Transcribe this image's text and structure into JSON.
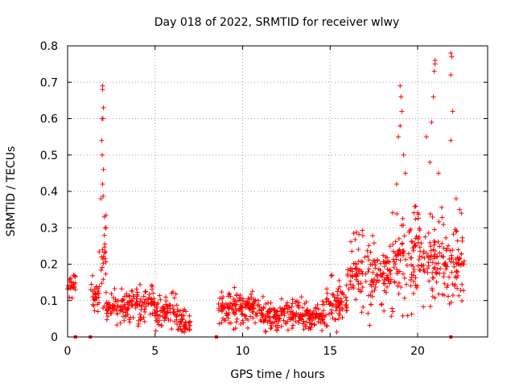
{
  "chart_data": {
    "type": "scatter",
    "title": "Day 018 of 2022, SRMTID for receiver wlwy",
    "xlabel": "GPS time / hours",
    "ylabel": "SRMTID / TECUs",
    "xlim": [
      0,
      24
    ],
    "ylim": [
      0,
      0.8
    ],
    "xticks": [
      0,
      5,
      10,
      15,
      20
    ],
    "xtick_labels": [
      "0",
      "5",
      "10",
      "15",
      "20"
    ],
    "yticks": [
      0,
      0.1,
      0.2,
      0.3,
      0.4,
      0.5,
      0.6,
      0.7,
      0.8
    ],
    "ytick_labels": [
      "0",
      "0.1",
      "0.2",
      "0.3",
      "0.4",
      "0.5",
      "0.6",
      "0.7",
      "0.8"
    ],
    "grid": true,
    "marker": "+",
    "color": "#ff0000",
    "zero_markers_x": [
      0.45,
      1.3,
      8.5,
      21.9
    ],
    "segments": [
      {
        "t0": 0.0,
        "t1": 0.45,
        "base": 0.14,
        "amp": 0.03
      },
      {
        "t0": 1.3,
        "t1": 1.8,
        "base": 0.12,
        "amp": 0.05
      },
      {
        "t0": 1.8,
        "t1": 2.2,
        "base": 0.22,
        "amp": 0.15
      },
      {
        "t0": 2.2,
        "t1": 3.5,
        "base": 0.08,
        "amp": 0.04
      },
      {
        "t0": 3.5,
        "t1": 5.0,
        "base": 0.09,
        "amp": 0.05
      },
      {
        "t0": 5.0,
        "t1": 6.3,
        "base": 0.07,
        "amp": 0.05
      },
      {
        "t0": 6.3,
        "t1": 7.0,
        "base": 0.04,
        "amp": 0.03
      },
      {
        "t0": 8.6,
        "t1": 9.3,
        "base": 0.08,
        "amp": 0.04
      },
      {
        "t0": 9.3,
        "t1": 11.0,
        "base": 0.08,
        "amp": 0.05
      },
      {
        "t0": 11.0,
        "t1": 12.5,
        "base": 0.06,
        "amp": 0.04
      },
      {
        "t0": 12.5,
        "t1": 14.8,
        "base": 0.06,
        "amp": 0.04
      },
      {
        "t0": 14.8,
        "t1": 16.0,
        "base": 0.09,
        "amp": 0.06
      },
      {
        "t0": 16.0,
        "t1": 18.5,
        "base": 0.17,
        "amp": 0.1
      },
      {
        "t0": 18.5,
        "t1": 20.0,
        "base": 0.22,
        "amp": 0.14
      },
      {
        "t0": 20.0,
        "t1": 21.5,
        "base": 0.22,
        "amp": 0.12
      },
      {
        "t0": 21.5,
        "t1": 22.7,
        "base": 0.2,
        "amp": 0.1
      }
    ],
    "spikes": [
      {
        "t": 2.0,
        "v": 0.69
      },
      {
        "t": 2.0,
        "v": 0.68
      },
      {
        "t": 2.05,
        "v": 0.63
      },
      {
        "t": 1.97,
        "v": 0.6
      },
      {
        "t": 2.02,
        "v": 0.6
      },
      {
        "t": 1.95,
        "v": 0.54
      },
      {
        "t": 1.98,
        "v": 0.5
      },
      {
        "t": 2.05,
        "v": 0.46
      },
      {
        "t": 2.0,
        "v": 0.42
      },
      {
        "t": 1.9,
        "v": 0.38
      },
      {
        "t": 2.1,
        "v": 0.33
      },
      {
        "t": 2.2,
        "v": 0.3
      },
      {
        "t": 19.0,
        "v": 0.69
      },
      {
        "t": 19.05,
        "v": 0.66
      },
      {
        "t": 19.1,
        "v": 0.62
      },
      {
        "t": 19.0,
        "v": 0.58
      },
      {
        "t": 18.9,
        "v": 0.55
      },
      {
        "t": 19.2,
        "v": 0.5
      },
      {
        "t": 19.3,
        "v": 0.45
      },
      {
        "t": 18.8,
        "v": 0.42
      },
      {
        "t": 20.5,
        "v": 0.55
      },
      {
        "t": 20.8,
        "v": 0.59
      },
      {
        "t": 20.9,
        "v": 0.66
      },
      {
        "t": 20.95,
        "v": 0.73
      },
      {
        "t": 21.0,
        "v": 0.76
      },
      {
        "t": 21.0,
        "v": 0.75
      },
      {
        "t": 20.7,
        "v": 0.48
      },
      {
        "t": 21.2,
        "v": 0.45
      },
      {
        "t": 21.9,
        "v": 0.78
      },
      {
        "t": 21.95,
        "v": 0.77
      },
      {
        "t": 21.9,
        "v": 0.72
      },
      {
        "t": 22.0,
        "v": 0.62
      },
      {
        "t": 21.9,
        "v": 0.54
      },
      {
        "t": 22.2,
        "v": 0.38
      },
      {
        "t": 22.4,
        "v": 0.35
      },
      {
        "t": 22.5,
        "v": 0.34
      }
    ]
  }
}
